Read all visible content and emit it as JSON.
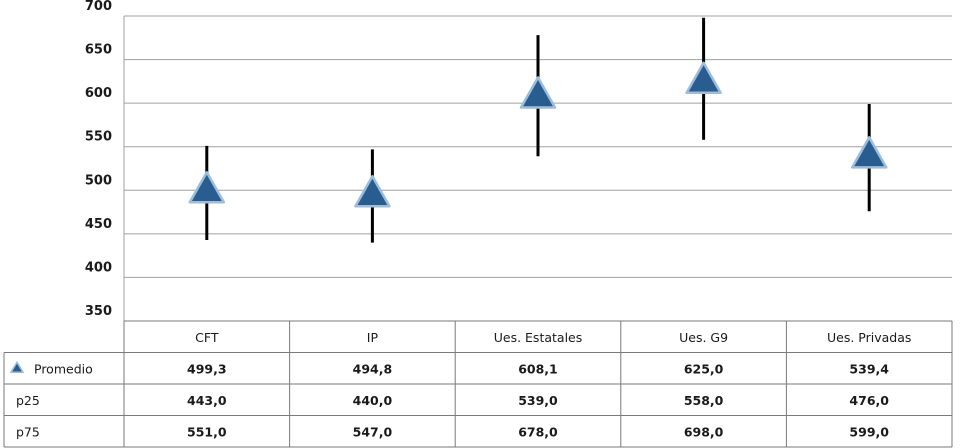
{
  "chart_data": {
    "type": "scatter",
    "title": "",
    "xlabel": "",
    "ylabel": "",
    "ylim": [
      350,
      700
    ],
    "yticks": [
      350,
      400,
      450,
      500,
      550,
      600,
      650,
      700
    ],
    "grid": true,
    "legend": "data-table",
    "categories": [
      "CFT",
      "IP",
      "Ues. Estatales",
      "Ues. G9",
      "Ues. Privadas"
    ],
    "series": [
      {
        "name": "Promedio",
        "values": [
          499.3,
          494.8,
          608.1,
          625.0,
          539.4
        ],
        "marker": "triangle"
      },
      {
        "name": "p25",
        "values": [
          443.0,
          440.0,
          539.0,
          558.0,
          476.0
        ]
      },
      {
        "name": "p75",
        "values": [
          551.0,
          547.0,
          678.0,
          698.0,
          599.0
        ]
      }
    ],
    "table": {
      "rows": [
        {
          "label": "Promedio",
          "cells": [
            "499,3",
            "494,8",
            "608,1",
            "625,0",
            "539,4"
          ]
        },
        {
          "label": "p25",
          "cells": [
            "443,0",
            "440,0",
            "539,0",
            "558,0",
            "476,0"
          ]
        },
        {
          "label": "p75",
          "cells": [
            "551,0",
            "547,0",
            "678,0",
            "698,0",
            "599,0"
          ]
        }
      ]
    },
    "colors": {
      "marker_fill": "#2a5d8f",
      "marker_stroke": "#9dbddb",
      "whisker": "#000000",
      "grid": "#a0a0a0"
    }
  }
}
